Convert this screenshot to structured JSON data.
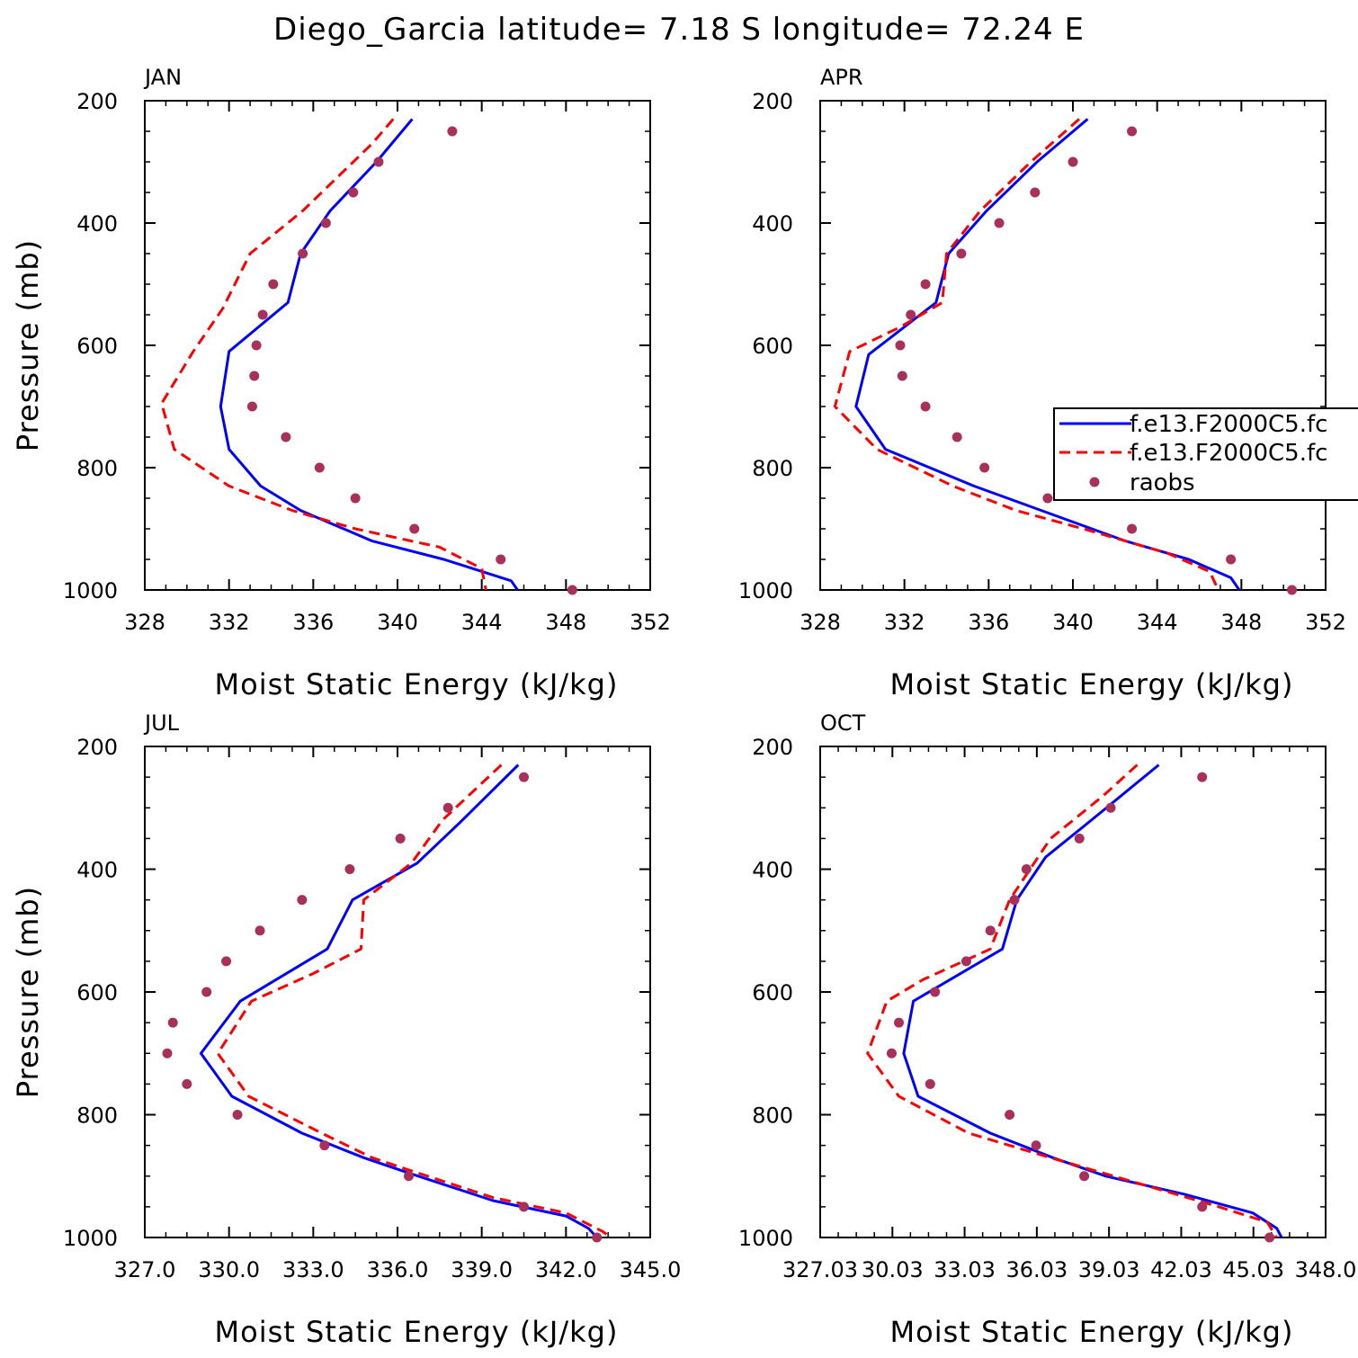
{
  "figure_title": "Diego_Garcia  latitude= 7.18 S longitude= 72.24 E",
  "colors": {
    "model1": "#0000ff",
    "model2": "#ff0000",
    "raobs": "#a8305a"
  },
  "legend": {
    "entries": [
      "f.e13.F2000C5.fc",
      "f.e13.F2000C5.fc",
      "raobs"
    ],
    "placement": "right side of APR panel, partially clipped"
  },
  "chart_data": [
    {
      "type": "line",
      "panel": "JAN",
      "title": "JAN",
      "xlabel": "Moist Static Energy (kJ/kg)",
      "ylabel": "Pressure (mb)",
      "xlim": [
        328,
        352
      ],
      "ylim": [
        1000,
        200
      ],
      "xticks": [
        328,
        332,
        336,
        340,
        344,
        348,
        352
      ],
      "xtick_labels": [
        "328",
        "332",
        "336",
        "340",
        "344",
        "348",
        "352"
      ],
      "yticks": [
        200,
        400,
        600,
        800,
        1000
      ],
      "ytick_labels": [
        "200",
        "400",
        "600",
        "800",
        "1000"
      ],
      "series": [
        {
          "name": "f.e13.F2000C5.fc",
          "style": "solid",
          "points": [
            [
              340.7,
              230
            ],
            [
              339.0,
              300
            ],
            [
              336.8,
              380
            ],
            [
              335.4,
              450
            ],
            [
              334.8,
              530
            ],
            [
              332.0,
              610
            ],
            [
              331.6,
              700
            ],
            [
              332.0,
              770
            ],
            [
              333.5,
              830
            ],
            [
              335.4,
              870
            ],
            [
              338.8,
              920
            ],
            [
              342.2,
              950
            ],
            [
              345.4,
              985
            ],
            [
              345.7,
              1000
            ]
          ]
        },
        {
          "name": "f.e13.F2000C5.fc",
          "style": "dashed",
          "points": [
            [
              339.8,
              230
            ],
            [
              338.8,
              270
            ],
            [
              337.3,
              320
            ],
            [
              335.5,
              380
            ],
            [
              333.0,
              450
            ],
            [
              331.7,
              540
            ],
            [
              330.3,
              610
            ],
            [
              328.8,
              695
            ],
            [
              329.4,
              770
            ],
            [
              332.0,
              830
            ],
            [
              335.0,
              870
            ],
            [
              338.0,
              900
            ],
            [
              342.0,
              930
            ],
            [
              344.0,
              965
            ],
            [
              344.2,
              1000
            ]
          ]
        },
        {
          "name": "raobs",
          "style": "markers",
          "points": [
            [
              342.6,
              250
            ],
            [
              339.1,
              300
            ],
            [
              337.9,
              350
            ],
            [
              336.6,
              400
            ],
            [
              335.5,
              450
            ],
            [
              334.1,
              500
            ],
            [
              333.6,
              550
            ],
            [
              333.3,
              600
            ],
            [
              333.2,
              650
            ],
            [
              333.1,
              700
            ],
            [
              334.7,
              750
            ],
            [
              336.3,
              800
            ],
            [
              338.0,
              850
            ],
            [
              340.8,
              900
            ],
            [
              344.9,
              950
            ],
            [
              348.3,
              1000
            ]
          ]
        }
      ]
    },
    {
      "type": "line",
      "panel": "APR",
      "title": "APR",
      "xlabel": "Moist Static Energy (kJ/kg)",
      "ylabel": "",
      "xlim": [
        328,
        352
      ],
      "ylim": [
        1000,
        200
      ],
      "xticks": [
        328,
        332,
        336,
        340,
        344,
        348,
        352
      ],
      "xtick_labels": [
        "328",
        "332",
        "336",
        "340",
        "344",
        "348",
        "352"
      ],
      "yticks": [
        200,
        400,
        600,
        800,
        1000
      ],
      "ytick_labels": [
        "200",
        "400",
        "600",
        "800",
        "1000"
      ],
      "series": [
        {
          "name": "f.e13.F2000C5.fc",
          "style": "solid",
          "points": [
            [
              340.7,
              230
            ],
            [
              338.3,
              300
            ],
            [
              335.9,
              380
            ],
            [
              334.1,
              450
            ],
            [
              333.5,
              530
            ],
            [
              330.3,
              615
            ],
            [
              329.7,
              700
            ],
            [
              331.1,
              770
            ],
            [
              335.3,
              830
            ],
            [
              338.5,
              870
            ],
            [
              342.5,
              920
            ],
            [
              345.5,
              950
            ],
            [
              347.5,
              980
            ],
            [
              347.9,
              1000
            ]
          ]
        },
        {
          "name": "f.e13.F2000C5.fc",
          "style": "dashed",
          "points": [
            [
              340.3,
              230
            ],
            [
              338.0,
              300
            ],
            [
              335.6,
              380
            ],
            [
              334.0,
              450
            ],
            [
              333.8,
              530
            ],
            [
              331.8,
              570
            ],
            [
              329.4,
              610
            ],
            [
              328.7,
              700
            ],
            [
              330.7,
              770
            ],
            [
              334.3,
              830
            ],
            [
              337.3,
              870
            ],
            [
              340.5,
              900
            ],
            [
              344.5,
              940
            ],
            [
              346.5,
              970
            ],
            [
              346.9,
              1000
            ]
          ]
        },
        {
          "name": "raobs",
          "style": "markers",
          "points": [
            [
              342.8,
              250
            ],
            [
              340.0,
              300
            ],
            [
              338.2,
              350
            ],
            [
              336.5,
              400
            ],
            [
              334.7,
              450
            ],
            [
              333.0,
              500
            ],
            [
              332.3,
              550
            ],
            [
              331.8,
              600
            ],
            [
              331.9,
              650
            ],
            [
              333.0,
              700
            ],
            [
              334.5,
              750
            ],
            [
              335.8,
              800
            ],
            [
              338.8,
              850
            ],
            [
              342.8,
              900
            ],
            [
              347.5,
              950
            ],
            [
              350.4,
              1000
            ]
          ]
        }
      ]
    },
    {
      "type": "line",
      "panel": "JUL",
      "title": "JUL",
      "xlabel": "Moist Static Energy (kJ/kg)",
      "ylabel": "Pressure (mb)",
      "xlim": [
        327.0,
        345.0
      ],
      "ylim": [
        1000,
        200
      ],
      "xticks": [
        327,
        330,
        333,
        336,
        339,
        342,
        345
      ],
      "xtick_labels": [
        "327.0",
        "330.0",
        "333.0",
        "336.0",
        "339.0",
        "342.0",
        "345.0"
      ],
      "yticks": [
        200,
        400,
        600,
        800,
        1000
      ],
      "ytick_labels": [
        "200",
        "400",
        "600",
        "800",
        "1000"
      ],
      "series": [
        {
          "name": "f.e13.F2000C5.fc",
          "style": "solid",
          "points": [
            [
              340.3,
              230
            ],
            [
              338.2,
              325
            ],
            [
              336.7,
              390
            ],
            [
              334.4,
              450
            ],
            [
              333.5,
              530
            ],
            [
              330.4,
              615
            ],
            [
              329.0,
              700
            ],
            [
              330.1,
              770
            ],
            [
              332.6,
              830
            ],
            [
              334.8,
              870
            ],
            [
              336.4,
              895
            ],
            [
              339.4,
              940
            ],
            [
              342.0,
              965
            ],
            [
              342.8,
              985
            ],
            [
              343.1,
              1000
            ]
          ]
        },
        {
          "name": "f.e13.F2000C5.fc",
          "style": "dashed",
          "points": [
            [
              339.7,
              230
            ],
            [
              337.6,
              320
            ],
            [
              336.5,
              390
            ],
            [
              334.8,
              450
            ],
            [
              334.7,
              530
            ],
            [
              333.0,
              570
            ],
            [
              330.8,
              615
            ],
            [
              329.6,
              700
            ],
            [
              330.7,
              770
            ],
            [
              333.3,
              830
            ],
            [
              335.1,
              870
            ],
            [
              336.4,
              890
            ],
            [
              339.4,
              935
            ],
            [
              342.0,
              960
            ],
            [
              343.3,
              990
            ],
            [
              343.6,
              1000
            ]
          ]
        },
        {
          "name": "raobs",
          "style": "markers",
          "points": [
            [
              340.5,
              250
            ],
            [
              337.8,
              300
            ],
            [
              336.1,
              350
            ],
            [
              334.3,
              400
            ],
            [
              332.6,
              450
            ],
            [
              331.1,
              500
            ],
            [
              329.9,
              550
            ],
            [
              329.2,
              600
            ],
            [
              328.0,
              650
            ],
            [
              327.8,
              700
            ],
            [
              328.5,
              750
            ],
            [
              330.3,
              800
            ],
            [
              333.4,
              850
            ],
            [
              336.4,
              900
            ],
            [
              340.5,
              950
            ],
            [
              343.1,
              1000
            ]
          ]
        }
      ]
    },
    {
      "type": "line",
      "panel": "OCT",
      "title": "OCT",
      "xlabel": "Moist Static Energy (kJ/kg)",
      "ylabel": "",
      "xlim": [
        327.03,
        348.03
      ],
      "ylim": [
        1000,
        200
      ],
      "xticks": [
        327.03,
        330.03,
        333.03,
        336.03,
        339.03,
        342.03,
        345.03,
        348.03
      ],
      "xtick_labels": [
        "327.03",
        "30.03",
        "33.03",
        "36.03",
        "39.03",
        "42.03",
        "45.03",
        "348.0"
      ],
      "yticks": [
        200,
        400,
        600,
        800,
        1000
      ],
      "ytick_labels": [
        "200",
        "400",
        "600",
        "800",
        "1000"
      ],
      "series": [
        {
          "name": "f.e13.F2000C5.fc",
          "style": "solid",
          "points": [
            [
              341.1,
              230
            ],
            [
              338.3,
              320
            ],
            [
              336.4,
              380
            ],
            [
              335.2,
              450
            ],
            [
              334.6,
              530
            ],
            [
              330.9,
              615
            ],
            [
              330.5,
              700
            ],
            [
              331.1,
              770
            ],
            [
              334.1,
              830
            ],
            [
              336.7,
              870
            ],
            [
              338.9,
              900
            ],
            [
              342.2,
              930
            ],
            [
              345.0,
              960
            ],
            [
              346.0,
              985
            ],
            [
              346.2,
              1000
            ]
          ]
        },
        {
          "name": "f.e13.F2000C5.fc",
          "style": "dashed",
          "points": [
            [
              340.2,
              230
            ],
            [
              338.8,
              280
            ],
            [
              336.6,
              350
            ],
            [
              334.9,
              450
            ],
            [
              334.1,
              530
            ],
            [
              331.3,
              580
            ],
            [
              329.8,
              615
            ],
            [
              329.0,
              700
            ],
            [
              330.3,
              770
            ],
            [
              333.2,
              830
            ],
            [
              336.6,
              870
            ],
            [
              340.1,
              910
            ],
            [
              343.6,
              950
            ],
            [
              345.6,
              975
            ],
            [
              346.0,
              1000
            ]
          ]
        },
        {
          "name": "raobs",
          "style": "markers",
          "points": [
            [
              342.9,
              250
            ],
            [
              339.1,
              300
            ],
            [
              337.8,
              350
            ],
            [
              335.6,
              400
            ],
            [
              335.1,
              450
            ],
            [
              334.1,
              500
            ],
            [
              333.1,
              550
            ],
            [
              331.8,
              600
            ],
            [
              330.3,
              650
            ],
            [
              330.0,
              700
            ],
            [
              331.6,
              750
            ],
            [
              334.9,
              800
            ],
            [
              336.0,
              850
            ],
            [
              338.0,
              900
            ],
            [
              342.9,
              950
            ],
            [
              345.7,
              1000
            ]
          ]
        }
      ]
    }
  ]
}
